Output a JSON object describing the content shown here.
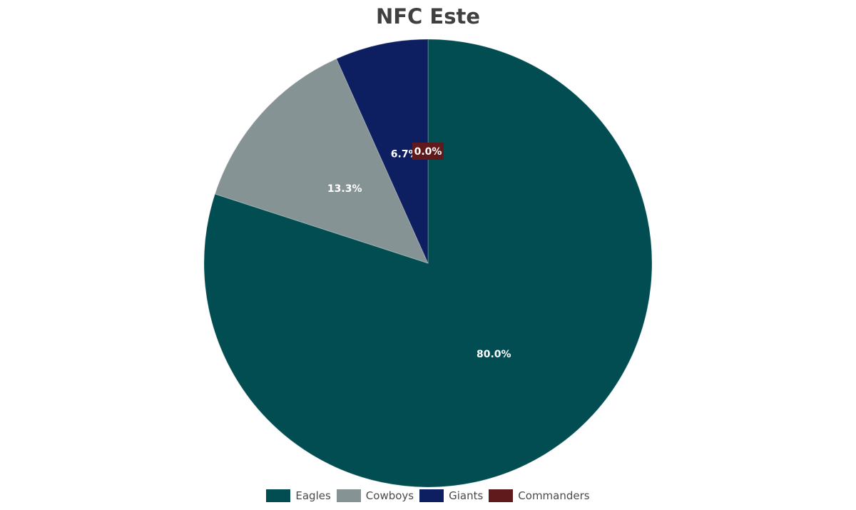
{
  "chart_data": {
    "type": "pie",
    "title": "NFC Este",
    "categories": [
      "Eagles",
      "Cowboys",
      "Giants",
      "Commanders"
    ],
    "values": [
      80.0,
      13.3,
      6.7,
      0.0
    ],
    "labels": [
      "80.0%",
      "13.3%",
      "6.7%",
      "0.0%"
    ],
    "colors": [
      "#014d52",
      "#869394",
      "#0d1f60",
      "#611a1c"
    ],
    "legend_position": "bottom",
    "start_angle": "top",
    "direction": "clockwise"
  }
}
